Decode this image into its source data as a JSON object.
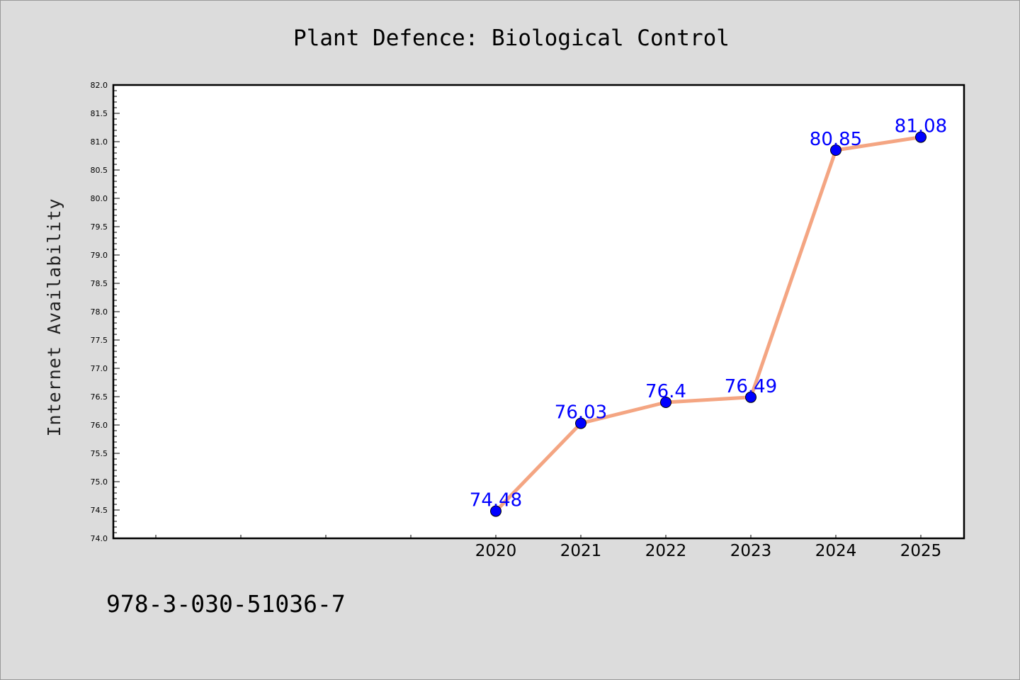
{
  "chart_data": {
    "type": "line",
    "title": "Plant Defence: Biological Control",
    "xlabel": "",
    "ylabel": "Internet Availability",
    "categories": [
      "2020",
      "2021",
      "2022",
      "2023",
      "2024",
      "2025"
    ],
    "series": [
      {
        "values": [
          74.48,
          76.03,
          76.4,
          76.49,
          80.85,
          81.08
        ]
      }
    ],
    "data_labels": [
      "74.48",
      "76.03",
      "76.4",
      "76.49",
      "80.85",
      "81.08"
    ],
    "ylim": [
      74.0,
      82.0
    ],
    "yticks": [
      "74.0",
      "74.5",
      "75.0",
      "75.5",
      "76.0",
      "76.5",
      "77.0",
      "77.5",
      "78.0",
      "78.5",
      "79.0",
      "79.5",
      "80.0",
      "80.5",
      "81.0",
      "81.5",
      "82.0"
    ],
    "grid": false,
    "legend": "none",
    "colors": {
      "line": "#f4a582",
      "marker": "#0000ff",
      "label": "#0000ff",
      "background": "#dcdcdc",
      "plot_area": "#ffffff"
    }
  },
  "footnote": "978-3-030-51036-7"
}
